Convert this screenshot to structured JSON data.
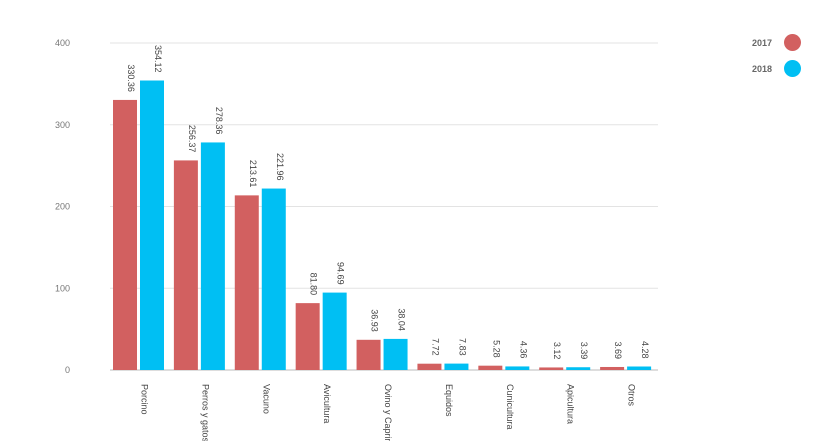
{
  "chart_data": {
    "type": "bar",
    "categories": [
      "Porcino",
      "Perros y gatos",
      "Vacuno",
      "Avicultura",
      "Ovino y Caprino",
      "Equidos",
      "Cunicultura",
      "Apicultura",
      "Otros"
    ],
    "series": [
      {
        "name": "2017",
        "values": [
          330.36,
          256.37,
          213.61,
          81.8,
          36.93,
          7.72,
          5.28,
          3.12,
          3.69
        ],
        "labels": [
          "330.36",
          "256.37",
          "213.61",
          "81.80",
          "36.93",
          "7.72",
          "5.28",
          "3.12",
          "3.69"
        ],
        "color": "#d26060"
      },
      {
        "name": "2018",
        "values": [
          354.12,
          278.36,
          221.96,
          94.69,
          38.04,
          7.83,
          4.36,
          3.39,
          4.28
        ],
        "labels": [
          "354.12",
          "278.36",
          "221.96",
          "94.69",
          "38.04",
          "7.83",
          "4.36",
          "3.39",
          "4.28"
        ],
        "color": "#00bff3"
      }
    ],
    "yticks": [
      "0",
      "100",
      "200",
      "300",
      "400"
    ],
    "ylim": [
      0,
      400
    ],
    "grid": true,
    "legend_position": "top-right"
  }
}
